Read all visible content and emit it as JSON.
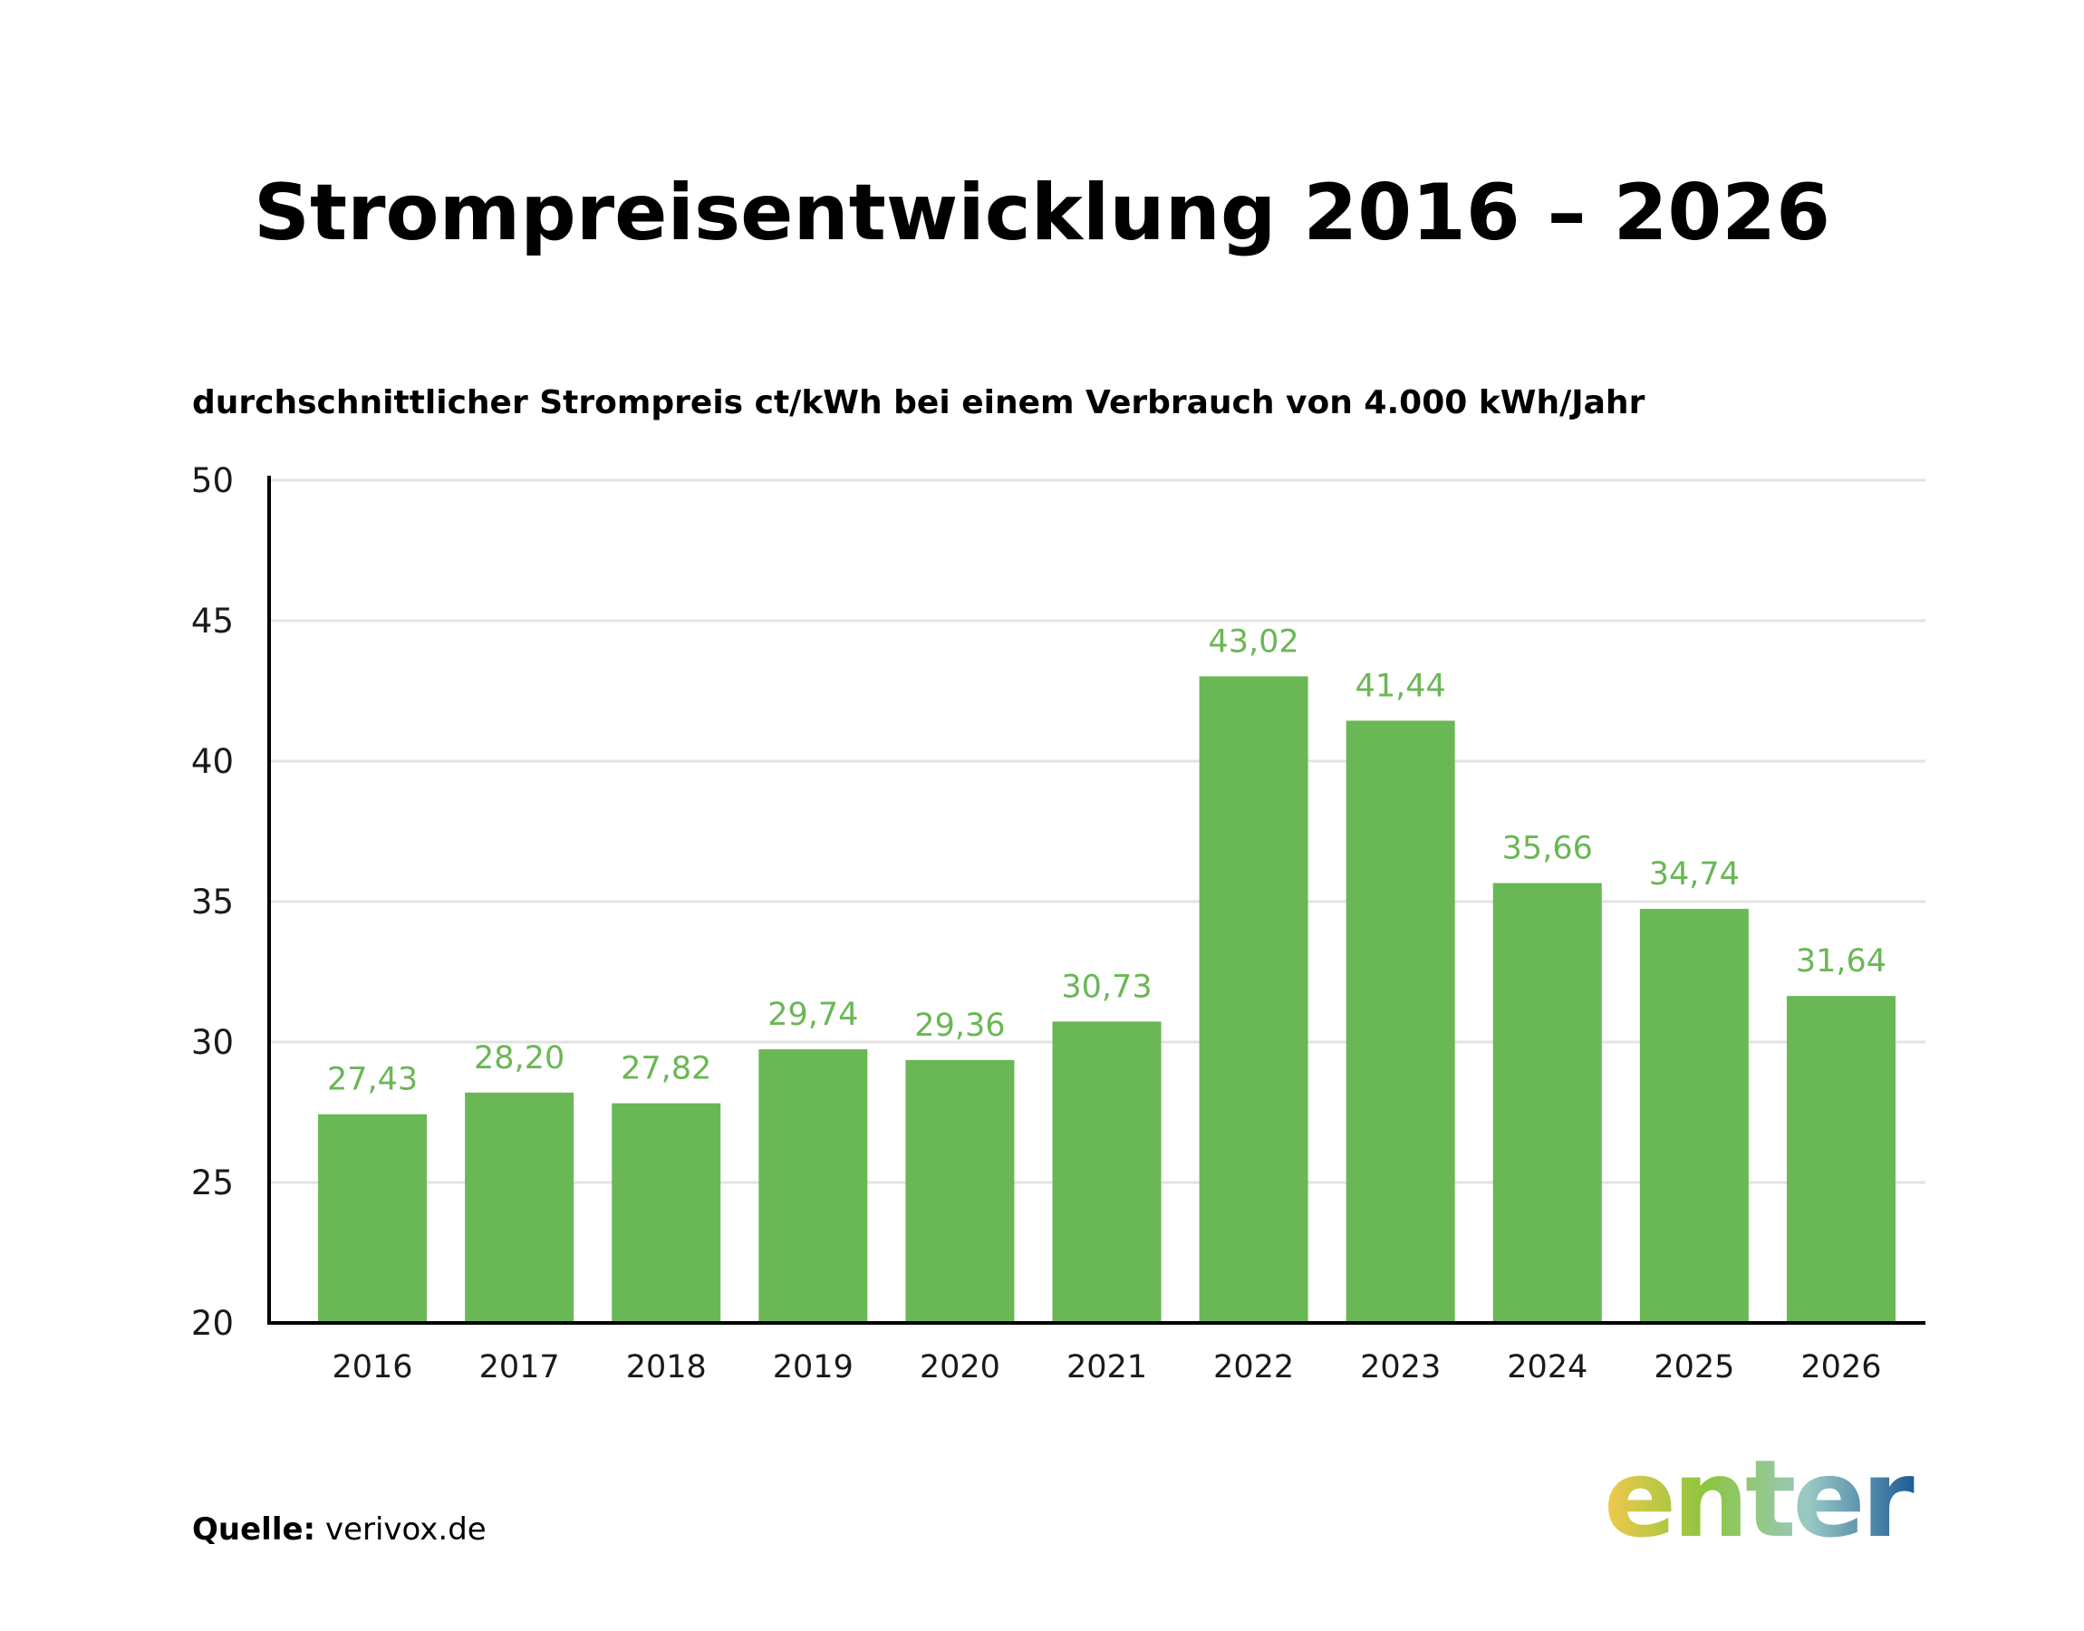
{
  "chart_data": {
    "type": "bar",
    "title": "Strompreisentwicklung 2016 – 2026",
    "subtitle": "durchschnittlicher Strompreis ct/kWh bei einem Verbrauch von 4.000 kWh/Jahr",
    "categories": [
      "2016",
      "2017",
      "2018",
      "2019",
      "2020",
      "2021",
      "2022",
      "2023",
      "2024",
      "2025",
      "2026"
    ],
    "values": [
      27.43,
      28.2,
      27.82,
      29.74,
      29.36,
      30.73,
      43.02,
      41.44,
      35.66,
      34.74,
      31.64
    ],
    "value_labels": [
      "27,43",
      "28,20",
      "27,82",
      "29,74",
      "29,36",
      "30,73",
      "43,02",
      "41,44",
      "35,66",
      "34,74",
      "31,64"
    ],
    "ylim": [
      20,
      50
    ],
    "yticks": [
      20,
      25,
      30,
      35,
      40,
      45,
      50
    ],
    "xlabel": "",
    "ylabel": "",
    "grid": true,
    "legend": "none",
    "bar_color": "#6ab755",
    "label_color": "#6ab755",
    "grid_color": "#e3e3e3",
    "axis_color": "#000000"
  },
  "source": {
    "label": "Quelle:",
    "text": "verivox.de"
  },
  "logo": {
    "text": "enter",
    "icon": "enter-logo",
    "colors": [
      "#f2c94c",
      "#8cc63f",
      "#99c9c4",
      "#1f5c96"
    ]
  }
}
